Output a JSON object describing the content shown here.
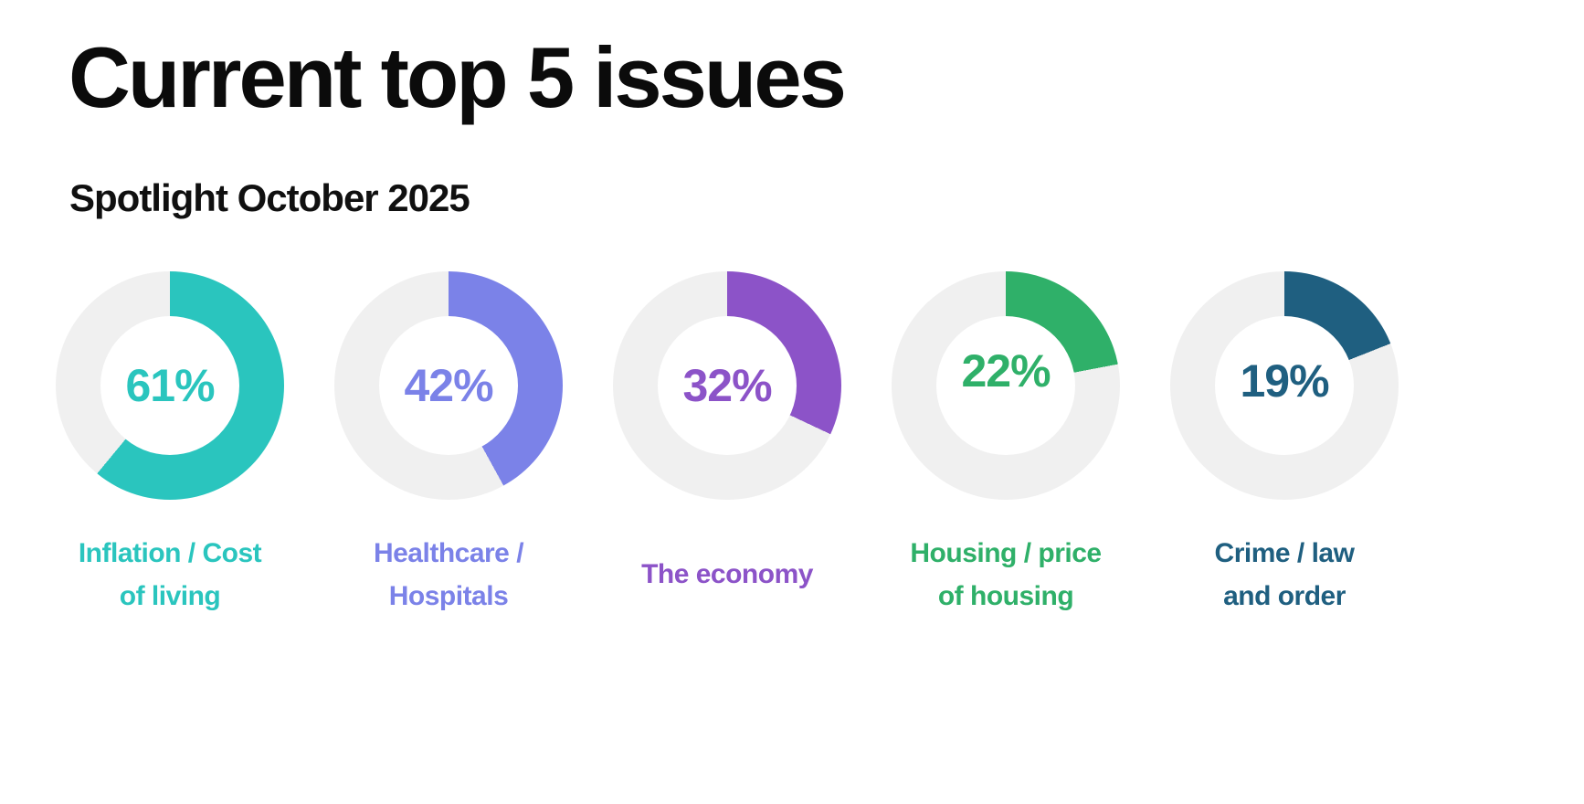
{
  "page": {
    "title": "Current top 5 issues",
    "subtitle": "Spotlight October 2025"
  },
  "colors": {
    "background": "#FFFFFF",
    "title_text": "#0B0B0B",
    "track": "#F0F0F0"
  },
  "chart_data": {
    "type": "pie",
    "variant": "donut-small-multiples",
    "title": "Current top 5 issues",
    "subtitle": "Spotlight October 2025",
    "unit": "%",
    "range": [
      0,
      100
    ],
    "arc_start": "top",
    "arc_direction": "clockwise",
    "items": [
      {
        "label": "Inflation / Cost of living",
        "label_lines": [
          "Inflation / Cost",
          "of living"
        ],
        "value": 61,
        "display": "61%",
        "color": "#2AC5BE"
      },
      {
        "label": "Healthcare / Hospitals",
        "label_lines": [
          "Healthcare /",
          "Hospitals"
        ],
        "value": 42,
        "display": "42%",
        "color": "#7B82E8"
      },
      {
        "label": "The economy",
        "label_lines": [
          "The economy"
        ],
        "value": 32,
        "display": "32%",
        "color": "#8C53C8"
      },
      {
        "label": "Housing / price of housing",
        "label_lines": [
          "Housing / price",
          "of housing"
        ],
        "value": 22,
        "display": "22%",
        "color": "#2FB069"
      },
      {
        "label": "Crime / law and order",
        "label_lines": [
          "Crime / law",
          "and order"
        ],
        "value": 19,
        "display": "19%",
        "color": "#1F5F80"
      }
    ]
  }
}
